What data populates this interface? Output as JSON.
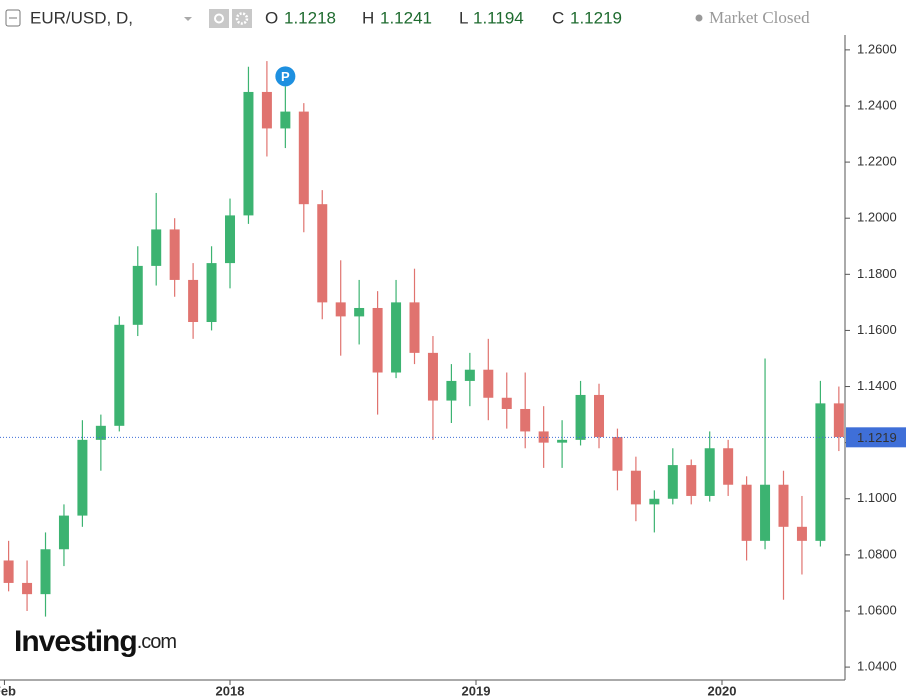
{
  "chart_data": {
    "type": "candlestick",
    "symbol": "EUR/USD, D,",
    "open_label": "O",
    "open_value": 1.1218,
    "high_label": "H",
    "high_value": 1.1241,
    "low_label": "L",
    "low_value": 1.1194,
    "close_label": "C",
    "close_value": 1.1219,
    "status": "Market Closed",
    "marker_label": "P",
    "watermark": "Investing",
    "watermark_suffix": ".com",
    "up_color": "#3cb371",
    "down_color": "#e0736f",
    "last_price": 1.1219,
    "last_price_color": "#3f6fd8",
    "x": [
      2017.1,
      2017.175,
      2017.25,
      2017.325,
      2017.4,
      2017.475,
      2017.55,
      2017.625,
      2017.7,
      2017.775,
      2017.85,
      2017.925,
      2018.0,
      2018.075,
      2018.15,
      2018.225,
      2018.3,
      2018.375,
      2018.45,
      2018.525,
      2018.6,
      2018.675,
      2018.75,
      2018.825,
      2018.9,
      2018.975,
      2019.05,
      2019.125,
      2019.2,
      2019.275,
      2019.35,
      2019.425,
      2019.5,
      2019.575,
      2019.65,
      2019.725,
      2019.8,
      2019.875,
      2019.95,
      2020.025,
      2020.1,
      2020.175,
      2020.25,
      2020.325,
      2020.4,
      2020.475
    ],
    "open": [
      1.078,
      1.07,
      1.066,
      1.082,
      1.094,
      1.121,
      1.126,
      1.162,
      1.183,
      1.196,
      1.178,
      1.163,
      1.184,
      1.201,
      1.245,
      1.232,
      1.238,
      1.205,
      1.17,
      1.165,
      1.168,
      1.145,
      1.17,
      1.152,
      1.135,
      1.142,
      1.146,
      1.136,
      1.132,
      1.124,
      1.12,
      1.121,
      1.137,
      1.122,
      1.11,
      1.098,
      1.1,
      1.112,
      1.101,
      1.118,
      1.105,
      1.085,
      1.105,
      1.09,
      1.085,
      1.134
    ],
    "high": [
      1.085,
      1.078,
      1.088,
      1.098,
      1.128,
      1.13,
      1.165,
      1.19,
      1.209,
      1.2,
      1.184,
      1.19,
      1.207,
      1.254,
      1.256,
      1.247,
      1.241,
      1.21,
      1.185,
      1.178,
      1.174,
      1.178,
      1.182,
      1.158,
      1.148,
      1.152,
      1.157,
      1.145,
      1.145,
      1.133,
      1.128,
      1.142,
      1.141,
      1.125,
      1.115,
      1.103,
      1.118,
      1.114,
      1.124,
      1.121,
      1.108,
      1.15,
      1.11,
      1.101,
      1.142,
      1.14
    ],
    "low": [
      1.067,
      1.06,
      1.058,
      1.076,
      1.09,
      1.11,
      1.124,
      1.158,
      1.176,
      1.172,
      1.157,
      1.16,
      1.175,
      1.198,
      1.222,
      1.225,
      1.195,
      1.164,
      1.151,
      1.155,
      1.13,
      1.143,
      1.148,
      1.121,
      1.127,
      1.133,
      1.128,
      1.125,
      1.118,
      1.111,
      1.111,
      1.119,
      1.118,
      1.103,
      1.092,
      1.088,
      1.098,
      1.098,
      1.099,
      1.101,
      1.078,
      1.082,
      1.064,
      1.073,
      1.083,
      1.117
    ],
    "close": [
      1.07,
      1.066,
      1.082,
      1.094,
      1.121,
      1.126,
      1.162,
      1.183,
      1.196,
      1.178,
      1.163,
      1.184,
      1.201,
      1.245,
      1.232,
      1.238,
      1.205,
      1.17,
      1.165,
      1.168,
      1.145,
      1.17,
      1.152,
      1.135,
      1.142,
      1.146,
      1.136,
      1.132,
      1.124,
      1.12,
      1.121,
      1.137,
      1.122,
      1.11,
      1.098,
      1.1,
      1.112,
      1.101,
      1.118,
      1.105,
      1.085,
      1.105,
      1.09,
      1.085,
      1.134,
      1.122
    ],
    "xlim": [
      2017.065,
      2020.5
    ],
    "xticks": [
      {
        "value": 2017.083,
        "label": "Feb"
      },
      2018,
      2019,
      2020
    ],
    "ylim": [
      1.0354,
      1.2653
    ],
    "yticks": [
      {
        "value": 1.04,
        "label": "1.0400"
      },
      {
        "value": 1.06,
        "label": "1.0600"
      },
      {
        "value": 1.08,
        "label": "1.0800"
      },
      {
        "value": 1.1,
        "label": "1.1000"
      },
      {
        "value": 1.12,
        "label": "1.1200"
      },
      {
        "value": 1.14,
        "label": "1.1400"
      },
      {
        "value": 1.16,
        "label": "1.1600"
      },
      {
        "value": 1.18,
        "label": "1.1800"
      },
      {
        "value": 1.2,
        "label": "1.2000"
      },
      {
        "value": 1.22,
        "label": "1.2200"
      },
      {
        "value": 1.24,
        "label": "1.2400"
      },
      {
        "value": 1.26,
        "label": "1.2600"
      }
    ]
  }
}
